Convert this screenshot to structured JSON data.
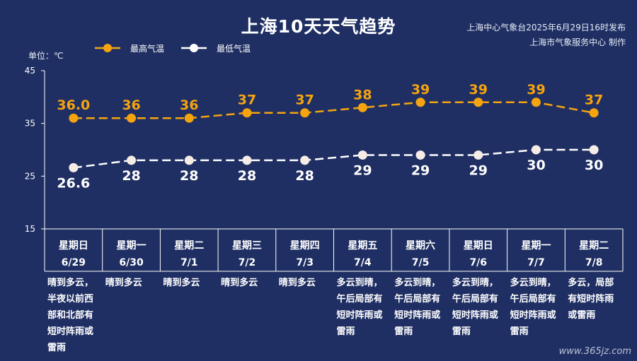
{
  "header": {
    "title": "上海10天天气趋势",
    "publisher_line1": "上海中心气象台2025年6月29日16时发布",
    "publisher_line2": "上海市气象服务中心 制作"
  },
  "watermark": "www.365jz.com",
  "colors": {
    "background": "#1f2f63",
    "high": "#f5a40f",
    "low": "#ffffff",
    "axis": "#ffffff"
  },
  "chart_data": {
    "type": "line",
    "unit_label": "单位：℃",
    "yticks": [
      15,
      25,
      35,
      45
    ],
    "ylim": [
      15,
      45
    ],
    "grid": false,
    "legend_position": "top-left",
    "series": [
      {
        "name": "最高气温",
        "values": [
          36.0,
          36,
          36,
          37,
          37,
          38,
          39,
          39,
          39,
          37
        ],
        "labels": [
          "36.0",
          "36",
          "36",
          "37",
          "37",
          "38",
          "39",
          "39",
          "39",
          "37"
        ]
      },
      {
        "name": "最低气温",
        "values": [
          26.6,
          28,
          28,
          28,
          28,
          29,
          29,
          29,
          30,
          30
        ],
        "labels": [
          "26.6",
          "28",
          "28",
          "28",
          "28",
          "29",
          "29",
          "29",
          "30",
          "30"
        ]
      }
    ],
    "days": [
      {
        "weekday": "星期日",
        "date": "6/29",
        "desc": "晴到多云，\n半夜以前西\n部和北部有\n短时阵雨或\n雷雨"
      },
      {
        "weekday": "星期一",
        "date": "6/30",
        "desc": "晴到多云"
      },
      {
        "weekday": "星期二",
        "date": "7/1",
        "desc": "晴到多云"
      },
      {
        "weekday": "星期三",
        "date": "7/2",
        "desc": "晴到多云"
      },
      {
        "weekday": "星期四",
        "date": "7/3",
        "desc": "晴到多云"
      },
      {
        "weekday": "星期五",
        "date": "7/4",
        "desc": "多云到晴，\n午后局部有\n短时阵雨或\n雷雨"
      },
      {
        "weekday": "星期六",
        "date": "7/5",
        "desc": "多云到晴，\n午后局部有\n短时阵雨或\n雷雨"
      },
      {
        "weekday": "星期日",
        "date": "7/6",
        "desc": "多云到晴，\n午后局部有\n短时阵雨或\n雷雨"
      },
      {
        "weekday": "星期一",
        "date": "7/7",
        "desc": "多云到晴，\n午后局部有\n短时阵雨或\n雷雨"
      },
      {
        "weekday": "星期二",
        "date": "7/8",
        "desc": "多云，局部\n有短时阵雨\n或雷雨"
      }
    ]
  }
}
